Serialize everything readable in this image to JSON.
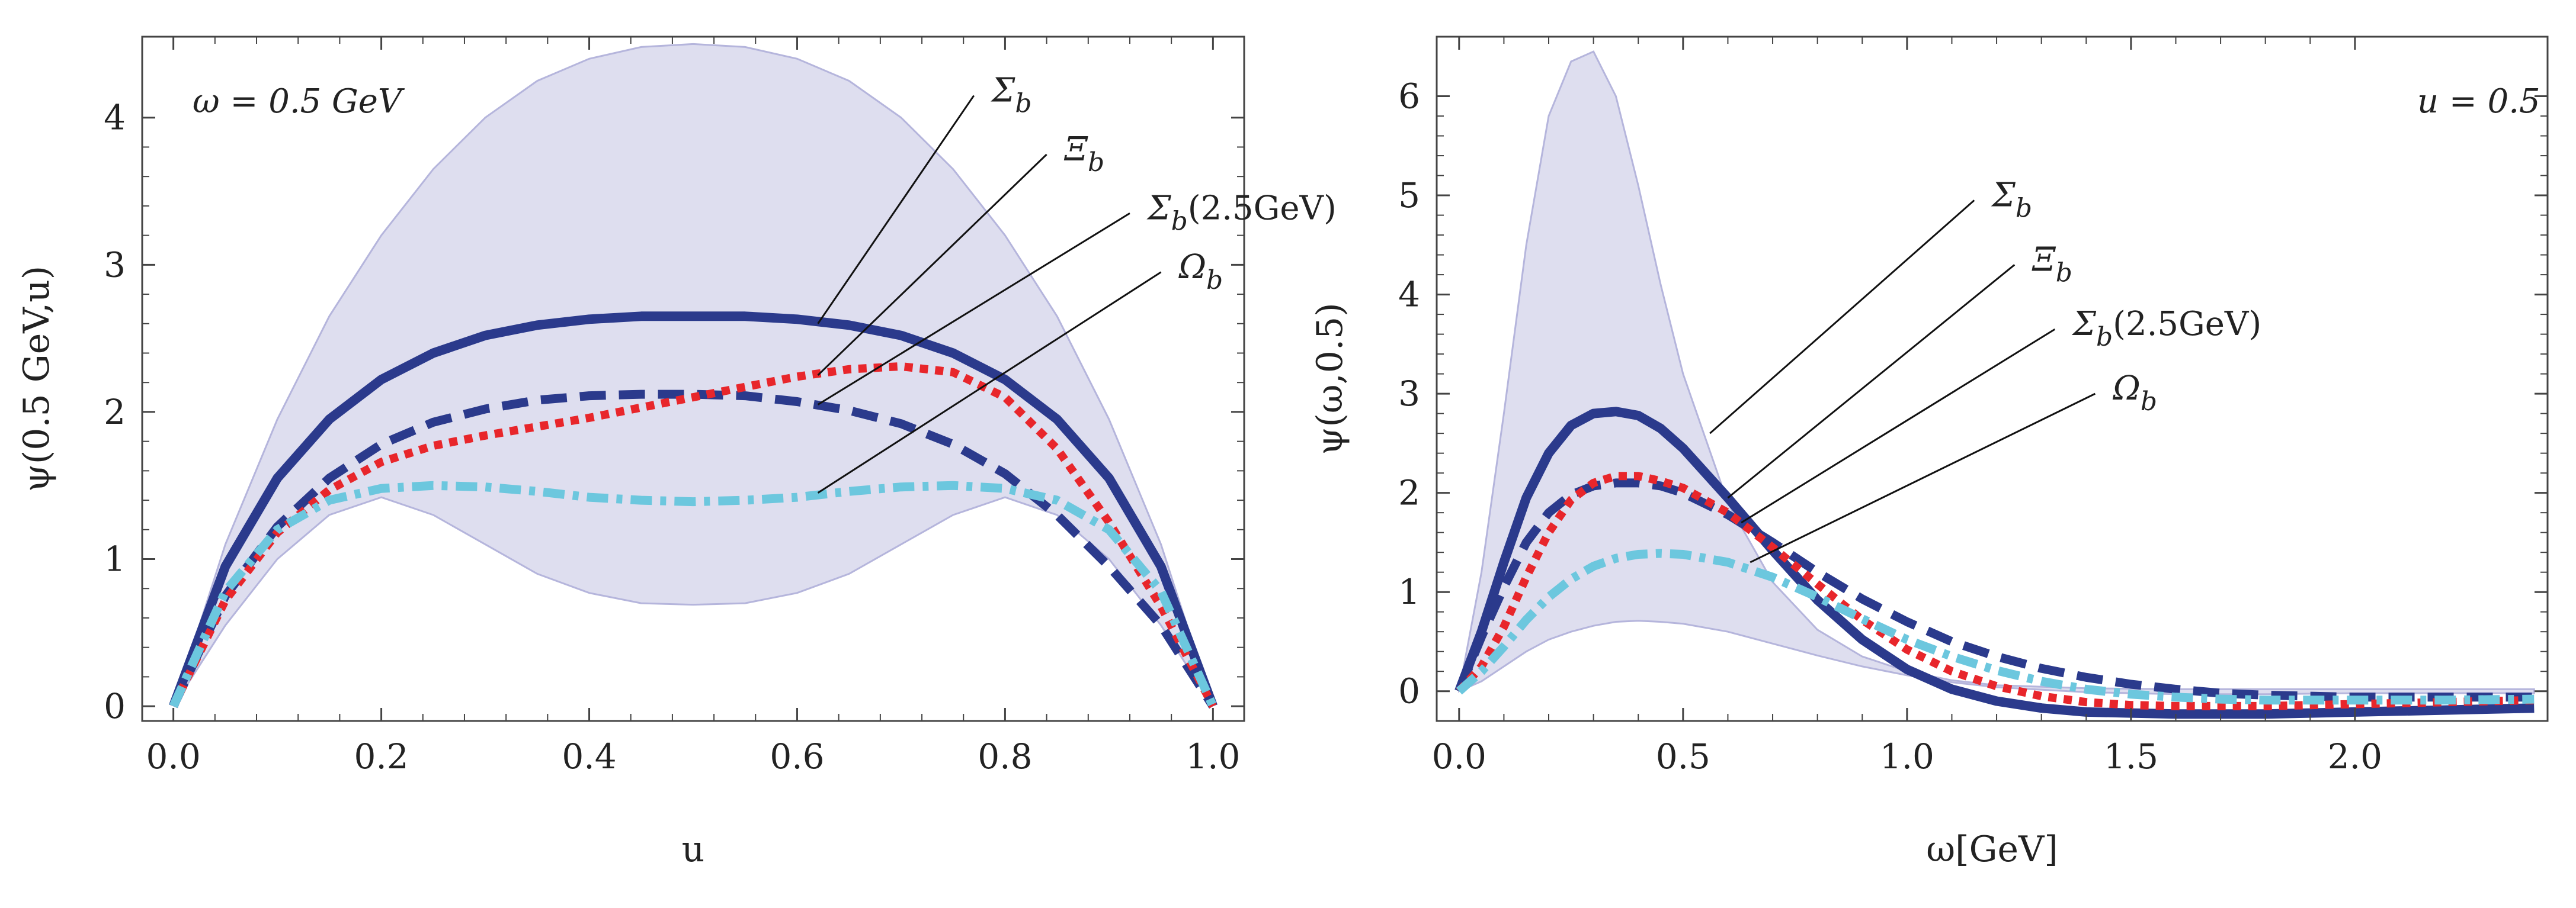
{
  "chart_data": [
    {
      "id": "left",
      "type": "line",
      "xlabel": "u",
      "ylabel": "ψ(0.5 GeV,u)",
      "xlim": [
        -0.03,
        1.03
      ],
      "ylim": [
        -0.1,
        4.55
      ],
      "xticks": [
        0.0,
        0.2,
        0.4,
        0.6,
        0.8,
        1.0
      ],
      "xtick_labels": [
        "0.0",
        "0.2",
        "0.4",
        "0.6",
        "0.8",
        "1.0"
      ],
      "yticks": [
        0,
        1,
        2,
        3,
        4
      ],
      "ytick_labels": [
        "0",
        "1",
        "2",
        "3",
        "4"
      ],
      "annotation": "ω = 0.5 GeV",
      "band": {
        "x": [
          0.0,
          0.05,
          0.1,
          0.15,
          0.2,
          0.25,
          0.3,
          0.35,
          0.4,
          0.45,
          0.5,
          0.55,
          0.6,
          0.65,
          0.7,
          0.75,
          0.8,
          0.85,
          0.9,
          0.95,
          1.0
        ],
        "lower": [
          0.0,
          0.55,
          1.0,
          1.3,
          1.42,
          1.3,
          1.1,
          0.9,
          0.77,
          0.7,
          0.69,
          0.7,
          0.77,
          0.9,
          1.1,
          1.3,
          1.42,
          1.3,
          1.0,
          0.55,
          0.0
        ],
        "upper": [
          0.0,
          1.1,
          1.95,
          2.65,
          3.2,
          3.65,
          4.0,
          4.25,
          4.4,
          4.48,
          4.5,
          4.48,
          4.4,
          4.25,
          4.0,
          3.65,
          3.2,
          2.65,
          1.95,
          1.1,
          0.0
        ]
      },
      "series": [
        {
          "name": "Σb",
          "style": "solid",
          "color": "#2b3a8c",
          "x": [
            0.0,
            0.05,
            0.1,
            0.15,
            0.2,
            0.25,
            0.3,
            0.35,
            0.4,
            0.45,
            0.5,
            0.55,
            0.6,
            0.65,
            0.7,
            0.75,
            0.8,
            0.85,
            0.9,
            0.95,
            1.0
          ],
          "y": [
            0.0,
            0.95,
            1.55,
            1.95,
            2.22,
            2.4,
            2.52,
            2.59,
            2.63,
            2.65,
            2.65,
            2.65,
            2.63,
            2.59,
            2.52,
            2.4,
            2.22,
            1.95,
            1.55,
            0.95,
            0.0
          ]
        },
        {
          "name": "Ξb",
          "style": "dashed",
          "color": "#2b3a8c",
          "x": [
            0.0,
            0.05,
            0.1,
            0.15,
            0.2,
            0.25,
            0.3,
            0.35,
            0.4,
            0.45,
            0.5,
            0.55,
            0.6,
            0.65,
            0.7,
            0.75,
            0.8,
            0.85,
            0.9,
            0.95,
            1.0
          ],
          "y": [
            0.0,
            0.75,
            1.22,
            1.55,
            1.78,
            1.93,
            2.02,
            2.08,
            2.11,
            2.12,
            2.12,
            2.11,
            2.07,
            2.01,
            1.92,
            1.78,
            1.58,
            1.3,
            0.95,
            0.55,
            0.0
          ]
        },
        {
          "name": "Σb(2.5GeV)",
          "style": "dotted",
          "color": "#e8262b",
          "x": [
            0.0,
            0.05,
            0.1,
            0.15,
            0.2,
            0.25,
            0.3,
            0.35,
            0.4,
            0.45,
            0.5,
            0.55,
            0.6,
            0.65,
            0.7,
            0.75,
            0.8,
            0.85,
            0.9,
            0.95,
            1.0
          ],
          "y": [
            0.0,
            0.72,
            1.18,
            1.47,
            1.66,
            1.77,
            1.84,
            1.9,
            1.96,
            2.03,
            2.1,
            2.17,
            2.24,
            2.29,
            2.31,
            2.27,
            2.1,
            1.75,
            1.25,
            0.68,
            0.0
          ]
        },
        {
          "name": "Ωb",
          "style": "dashdot",
          "color": "#6cc7de",
          "x": [
            0.0,
            0.05,
            0.1,
            0.15,
            0.2,
            0.25,
            0.3,
            0.35,
            0.4,
            0.45,
            0.5,
            0.55,
            0.6,
            0.65,
            0.7,
            0.75,
            0.8,
            0.85,
            0.9,
            0.95,
            1.0
          ],
          "y": [
            0.0,
            0.78,
            1.2,
            1.4,
            1.48,
            1.5,
            1.49,
            1.46,
            1.42,
            1.4,
            1.39,
            1.4,
            1.42,
            1.46,
            1.49,
            1.5,
            1.48,
            1.4,
            1.2,
            0.78,
            0.0
          ]
        }
      ],
      "labels": [
        {
          "series": "Σb",
          "text": "Σb",
          "point": [
            0.62,
            2.6
          ],
          "at": [
            0.77,
            4.15
          ]
        },
        {
          "series": "Ξb",
          "text": "Ξb",
          "point": [
            0.62,
            2.25
          ],
          "at": [
            0.84,
            3.75
          ]
        },
        {
          "series": "Σb(2.5GeV)",
          "text": "Σb(2.5GeV)",
          "point": [
            0.62,
            2.05
          ],
          "at": [
            0.92,
            3.35
          ]
        },
        {
          "series": "Ωb",
          "text": "Ωb",
          "point": [
            0.62,
            1.45
          ],
          "at": [
            0.95,
            2.95
          ]
        }
      ]
    },
    {
      "id": "right",
      "type": "line",
      "xlabel": "ω[GeV]",
      "ylabel": "ψ(ω,0.5)",
      "xlim": [
        -0.05,
        2.43
      ],
      "ylim": [
        -0.3,
        6.6
      ],
      "xticks": [
        0.0,
        0.5,
        1.0,
        1.5,
        2.0
      ],
      "xtick_labels": [
        "0.0",
        "0.5",
        "1.0",
        "1.5",
        "2.0"
      ],
      "yticks": [
        0,
        1,
        2,
        3,
        4,
        5,
        6
      ],
      "ytick_labels": [
        "0",
        "1",
        "2",
        "3",
        "4",
        "5",
        "6"
      ],
      "annotation": "u = 0.5",
      "band": {
        "x": [
          0.0,
          0.05,
          0.1,
          0.15,
          0.2,
          0.25,
          0.3,
          0.35,
          0.4,
          0.45,
          0.5,
          0.6,
          0.7,
          0.8,
          0.9,
          1.0,
          1.1,
          1.2,
          1.4,
          1.6,
          1.8,
          2.0,
          2.2,
          2.4
        ],
        "lower": [
          0.0,
          0.1,
          0.25,
          0.4,
          0.52,
          0.6,
          0.66,
          0.7,
          0.71,
          0.7,
          0.68,
          0.6,
          0.48,
          0.36,
          0.25,
          0.16,
          0.09,
          0.04,
          -0.01,
          -0.03,
          -0.03,
          -0.02,
          -0.02,
          -0.02
        ],
        "upper": [
          0.0,
          1.2,
          2.8,
          4.5,
          5.8,
          6.35,
          6.45,
          6.0,
          5.1,
          4.1,
          3.2,
          1.9,
          1.1,
          0.62,
          0.35,
          0.2,
          0.11,
          0.06,
          0.03,
          0.02,
          0.02,
          0.02,
          0.02,
          0.02
        ]
      },
      "series": [
        {
          "name": "Σb",
          "style": "solid",
          "color": "#2b3a8c",
          "x": [
            0.0,
            0.05,
            0.1,
            0.15,
            0.2,
            0.25,
            0.3,
            0.35,
            0.4,
            0.45,
            0.5,
            0.6,
            0.7,
            0.8,
            0.9,
            1.0,
            1.1,
            1.2,
            1.3,
            1.4,
            1.5,
            1.6,
            1.7,
            1.8,
            1.9,
            2.0,
            2.2,
            2.4
          ],
          "y": [
            0.0,
            0.6,
            1.3,
            1.95,
            2.4,
            2.68,
            2.8,
            2.82,
            2.78,
            2.65,
            2.45,
            1.95,
            1.42,
            0.92,
            0.52,
            0.22,
            0.02,
            -0.1,
            -0.17,
            -0.21,
            -0.22,
            -0.23,
            -0.23,
            -0.23,
            -0.22,
            -0.21,
            -0.19,
            -0.17
          ]
        },
        {
          "name": "Ξb",
          "style": "dashed",
          "color": "#2b3a8c",
          "x": [
            0.0,
            0.05,
            0.1,
            0.15,
            0.2,
            0.25,
            0.3,
            0.35,
            0.4,
            0.45,
            0.5,
            0.6,
            0.7,
            0.8,
            0.9,
            1.0,
            1.1,
            1.2,
            1.3,
            1.4,
            1.5,
            1.6,
            1.7,
            1.8,
            1.9,
            2.0,
            2.2,
            2.4
          ],
          "y": [
            0.0,
            0.55,
            1.05,
            1.5,
            1.8,
            1.98,
            2.07,
            2.1,
            2.1,
            2.07,
            2.0,
            1.78,
            1.5,
            1.2,
            0.93,
            0.7,
            0.5,
            0.35,
            0.23,
            0.14,
            0.07,
            0.02,
            -0.02,
            -0.04,
            -0.05,
            -0.06,
            -0.06,
            -0.06
          ]
        },
        {
          "name": "Σb(2.5GeV)",
          "style": "dotted",
          "color": "#e8262b",
          "x": [
            0.0,
            0.05,
            0.1,
            0.15,
            0.2,
            0.25,
            0.3,
            0.35,
            0.4,
            0.45,
            0.5,
            0.6,
            0.7,
            0.8,
            0.9,
            1.0,
            1.1,
            1.2,
            1.3,
            1.4,
            1.5,
            1.6,
            1.7,
            1.8,
            1.9,
            2.0,
            2.2,
            2.4
          ],
          "y": [
            0.0,
            0.25,
            0.65,
            1.15,
            1.6,
            1.93,
            2.1,
            2.17,
            2.17,
            2.12,
            2.05,
            1.8,
            1.45,
            1.08,
            0.72,
            0.42,
            0.2,
            0.05,
            -0.05,
            -0.11,
            -0.14,
            -0.15,
            -0.15,
            -0.15,
            -0.14,
            -0.13,
            -0.11,
            -0.09
          ]
        },
        {
          "name": "Ωb",
          "style": "dashdot",
          "color": "#6cc7de",
          "x": [
            0.0,
            0.05,
            0.1,
            0.15,
            0.2,
            0.25,
            0.3,
            0.35,
            0.4,
            0.45,
            0.5,
            0.6,
            0.7,
            0.8,
            0.9,
            1.0,
            1.1,
            1.2,
            1.3,
            1.4,
            1.5,
            1.6,
            1.7,
            1.8,
            1.9,
            2.0,
            2.2,
            2.4
          ],
          "y": [
            0.0,
            0.2,
            0.45,
            0.72,
            0.95,
            1.13,
            1.26,
            1.34,
            1.38,
            1.39,
            1.38,
            1.3,
            1.15,
            0.95,
            0.73,
            0.52,
            0.35,
            0.21,
            0.1,
            0.02,
            -0.03,
            -0.06,
            -0.08,
            -0.09,
            -0.09,
            -0.09,
            -0.09,
            -0.08
          ]
        }
      ],
      "labels": [
        {
          "series": "Σb",
          "text": "Σb",
          "point": [
            0.56,
            2.6
          ],
          "at": [
            1.15,
            4.95
          ]
        },
        {
          "series": "Ξb",
          "text": "Ξb",
          "point": [
            0.6,
            1.95
          ],
          "at": [
            1.24,
            4.3
          ]
        },
        {
          "series": "Σb(2.5GeV)",
          "text": "Σb(2.5GeV)",
          "point": [
            0.63,
            1.7
          ],
          "at": [
            1.33,
            3.65
          ]
        },
        {
          "series": "Ωb",
          "text": "Ωb",
          "point": [
            0.65,
            1.3
          ],
          "at": [
            1.42,
            3.0
          ]
        }
      ]
    }
  ]
}
